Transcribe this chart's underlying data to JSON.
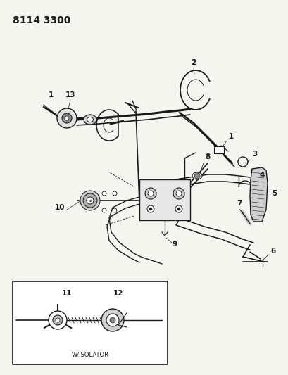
{
  "title": "8114 3300",
  "bg_color": "#f5f5f0",
  "line_color": "#1a1a1a",
  "title_fontsize": 10,
  "label_fontsize": 7.5,
  "inset_label": "W/ISOLATOR",
  "diagram_bg": "#f5f5f0"
}
